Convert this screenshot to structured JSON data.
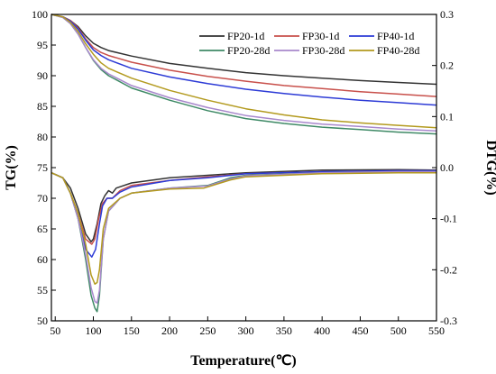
{
  "chart_data": {
    "type": "line",
    "title": "",
    "xlabel": "Temperature(℃)",
    "ylabel_left": "TG(%)",
    "ylabel_right": "DTG(%)",
    "xlim": [
      45,
      550
    ],
    "ylim_left": [
      50,
      100
    ],
    "ylim_right": [
      -0.3,
      0.3
    ],
    "x_ticks": [
      50,
      100,
      150,
      200,
      250,
      300,
      350,
      400,
      450,
      500,
      550
    ],
    "y_ticks_left": [
      50,
      55,
      60,
      65,
      70,
      75,
      80,
      85,
      90,
      95,
      100
    ],
    "y_ticks_right": [
      "-0.3",
      "-0.2",
      "-0.1",
      "0.0",
      "0.1",
      "0.2",
      "0.3"
    ],
    "grid": false,
    "legend_position": "top-right",
    "series": [
      {
        "name": "FP20-1d",
        "color": "#333333",
        "tg": [
          [
            45,
            100
          ],
          [
            60,
            99.6
          ],
          [
            70,
            99
          ],
          [
            80,
            98
          ],
          [
            90,
            96.5
          ],
          [
            100,
            95.3
          ],
          [
            110,
            94.6
          ],
          [
            120,
            94.1
          ],
          [
            150,
            93.2
          ],
          [
            200,
            92
          ],
          [
            250,
            91.2
          ],
          [
            300,
            90.5
          ],
          [
            350,
            90
          ],
          [
            400,
            89.6
          ],
          [
            450,
            89.2
          ],
          [
            500,
            88.9
          ],
          [
            550,
            88.6
          ]
        ],
        "dtg": [
          [
            45,
            -0.01
          ],
          [
            60,
            -0.02
          ],
          [
            70,
            -0.04
          ],
          [
            80,
            -0.08
          ],
          [
            90,
            -0.13
          ],
          [
            97,
            -0.145
          ],
          [
            100,
            -0.14
          ],
          [
            105,
            -0.11
          ],
          [
            110,
            -0.07
          ],
          [
            115,
            -0.055
          ],
          [
            120,
            -0.045
          ],
          [
            125,
            -0.05
          ],
          [
            130,
            -0.04
          ],
          [
            150,
            -0.03
          ],
          [
            200,
            -0.02
          ],
          [
            250,
            -0.015
          ],
          [
            300,
            -0.01
          ],
          [
            400,
            -0.005
          ],
          [
            500,
            -0.004
          ],
          [
            550,
            -0.005
          ]
        ]
      },
      {
        "name": "FP30-1d",
        "color": "#c8504b",
        "tg": [
          [
            45,
            100
          ],
          [
            60,
            99.6
          ],
          [
            70,
            99
          ],
          [
            80,
            97.8
          ],
          [
            90,
            96
          ],
          [
            100,
            94.6
          ],
          [
            110,
            93.8
          ],
          [
            120,
            93.3
          ],
          [
            150,
            92.2
          ],
          [
            200,
            90.9
          ],
          [
            250,
            89.9
          ],
          [
            300,
            89.1
          ],
          [
            350,
            88.4
          ],
          [
            400,
            87.9
          ],
          [
            450,
            87.4
          ],
          [
            500,
            87
          ],
          [
            550,
            86.6
          ]
        ],
        "dtg": [
          [
            45,
            -0.01
          ],
          [
            60,
            -0.02
          ],
          [
            70,
            -0.05
          ],
          [
            80,
            -0.09
          ],
          [
            90,
            -0.14
          ],
          [
            98,
            -0.15
          ],
          [
            102,
            -0.14
          ],
          [
            107,
            -0.1
          ],
          [
            112,
            -0.07
          ],
          [
            118,
            -0.06
          ],
          [
            125,
            -0.06
          ],
          [
            135,
            -0.045
          ],
          [
            150,
            -0.035
          ],
          [
            200,
            -0.025
          ],
          [
            250,
            -0.018
          ],
          [
            300,
            -0.012
          ],
          [
            400,
            -0.008
          ],
          [
            500,
            -0.006
          ],
          [
            550,
            -0.006
          ]
        ]
      },
      {
        "name": "FP40-1d",
        "color": "#2d3bd6",
        "tg": [
          [
            45,
            100
          ],
          [
            60,
            99.6
          ],
          [
            70,
            98.9
          ],
          [
            80,
            97.6
          ],
          [
            90,
            95.8
          ],
          [
            100,
            94.2
          ],
          [
            110,
            93.3
          ],
          [
            120,
            92.6
          ],
          [
            150,
            91.2
          ],
          [
            200,
            89.8
          ],
          [
            250,
            88.7
          ],
          [
            300,
            87.8
          ],
          [
            350,
            87.1
          ],
          [
            400,
            86.5
          ],
          [
            450,
            86
          ],
          [
            500,
            85.6
          ],
          [
            550,
            85.2
          ]
        ],
        "dtg": [
          [
            45,
            -0.01
          ],
          [
            60,
            -0.02
          ],
          [
            70,
            -0.05
          ],
          [
            80,
            -0.1
          ],
          [
            90,
            -0.16
          ],
          [
            98,
            -0.175
          ],
          [
            103,
            -0.16
          ],
          [
            108,
            -0.11
          ],
          [
            112,
            -0.075
          ],
          [
            118,
            -0.06
          ],
          [
            125,
            -0.06
          ],
          [
            135,
            -0.048
          ],
          [
            150,
            -0.038
          ],
          [
            200,
            -0.025
          ],
          [
            250,
            -0.02
          ],
          [
            300,
            -0.012
          ],
          [
            400,
            -0.008
          ],
          [
            500,
            -0.006
          ],
          [
            550,
            -0.006
          ]
        ]
      },
      {
        "name": "FP20-28d",
        "color": "#3f8a66",
        "tg": [
          [
            45,
            100
          ],
          [
            60,
            99.5
          ],
          [
            70,
            98.5
          ],
          [
            80,
            96.8
          ],
          [
            90,
            94.6
          ],
          [
            100,
            92.5
          ],
          [
            110,
            91
          ],
          [
            120,
            90
          ],
          [
            150,
            88
          ],
          [
            200,
            86
          ],
          [
            250,
            84.3
          ],
          [
            300,
            83
          ],
          [
            350,
            82.2
          ],
          [
            400,
            81.6
          ],
          [
            450,
            81.2
          ],
          [
            500,
            80.8
          ],
          [
            550,
            80.5
          ]
        ],
        "dtg": [
          [
            45,
            -0.01
          ],
          [
            60,
            -0.02
          ],
          [
            70,
            -0.05
          ],
          [
            80,
            -0.1
          ],
          [
            90,
            -0.18
          ],
          [
            97,
            -0.25
          ],
          [
            102,
            -0.275
          ],
          [
            105,
            -0.282
          ],
          [
            108,
            -0.25
          ],
          [
            113,
            -0.14
          ],
          [
            120,
            -0.085
          ],
          [
            135,
            -0.06
          ],
          [
            150,
            -0.05
          ],
          [
            200,
            -0.04
          ],
          [
            250,
            -0.035
          ],
          [
            280,
            -0.02
          ],
          [
            300,
            -0.015
          ],
          [
            400,
            -0.01
          ],
          [
            500,
            -0.008
          ],
          [
            550,
            -0.008
          ]
        ]
      },
      {
        "name": "FP30-28d",
        "color": "#a888cc",
        "tg": [
          [
            45,
            100
          ],
          [
            60,
            99.5
          ],
          [
            70,
            98.5
          ],
          [
            80,
            96.8
          ],
          [
            90,
            94.6
          ],
          [
            100,
            92.6
          ],
          [
            110,
            91.2
          ],
          [
            120,
            90.3
          ],
          [
            150,
            88.4
          ],
          [
            200,
            86.4
          ],
          [
            250,
            84.8
          ],
          [
            300,
            83.5
          ],
          [
            350,
            82.7
          ],
          [
            400,
            82.1
          ],
          [
            450,
            81.7
          ],
          [
            500,
            81.3
          ],
          [
            550,
            81
          ]
        ],
        "dtg": [
          [
            45,
            -0.01
          ],
          [
            60,
            -0.02
          ],
          [
            70,
            -0.05
          ],
          [
            80,
            -0.1
          ],
          [
            90,
            -0.17
          ],
          [
            97,
            -0.235
          ],
          [
            102,
            -0.262
          ],
          [
            105,
            -0.265
          ],
          [
            108,
            -0.24
          ],
          [
            113,
            -0.14
          ],
          [
            120,
            -0.085
          ],
          [
            135,
            -0.06
          ],
          [
            150,
            -0.05
          ],
          [
            200,
            -0.04
          ],
          [
            250,
            -0.036
          ],
          [
            280,
            -0.022
          ],
          [
            300,
            -0.016
          ],
          [
            400,
            -0.01
          ],
          [
            500,
            -0.008
          ],
          [
            550,
            -0.008
          ]
        ]
      },
      {
        "name": "FP40-28d",
        "color": "#b39a1e",
        "tg": [
          [
            45,
            100
          ],
          [
            60,
            99.6
          ],
          [
            70,
            98.7
          ],
          [
            80,
            97.2
          ],
          [
            90,
            95.2
          ],
          [
            100,
            93.5
          ],
          [
            110,
            92.1
          ],
          [
            120,
            91.2
          ],
          [
            150,
            89.6
          ],
          [
            200,
            87.6
          ],
          [
            250,
            86
          ],
          [
            300,
            84.6
          ],
          [
            350,
            83.6
          ],
          [
            400,
            82.8
          ],
          [
            450,
            82.3
          ],
          [
            500,
            81.9
          ],
          [
            550,
            81.5
          ]
        ],
        "dtg": [
          [
            45,
            -0.01
          ],
          [
            60,
            -0.02
          ],
          [
            70,
            -0.05
          ],
          [
            80,
            -0.09
          ],
          [
            90,
            -0.15
          ],
          [
            97,
            -0.21
          ],
          [
            102,
            -0.228
          ],
          [
            105,
            -0.225
          ],
          [
            108,
            -0.2
          ],
          [
            113,
            -0.12
          ],
          [
            120,
            -0.08
          ],
          [
            135,
            -0.06
          ],
          [
            150,
            -0.05
          ],
          [
            200,
            -0.042
          ],
          [
            245,
            -0.04
          ],
          [
            280,
            -0.024
          ],
          [
            300,
            -0.018
          ],
          [
            400,
            -0.012
          ],
          [
            500,
            -0.01
          ],
          [
            550,
            -0.01
          ]
        ]
      }
    ]
  }
}
